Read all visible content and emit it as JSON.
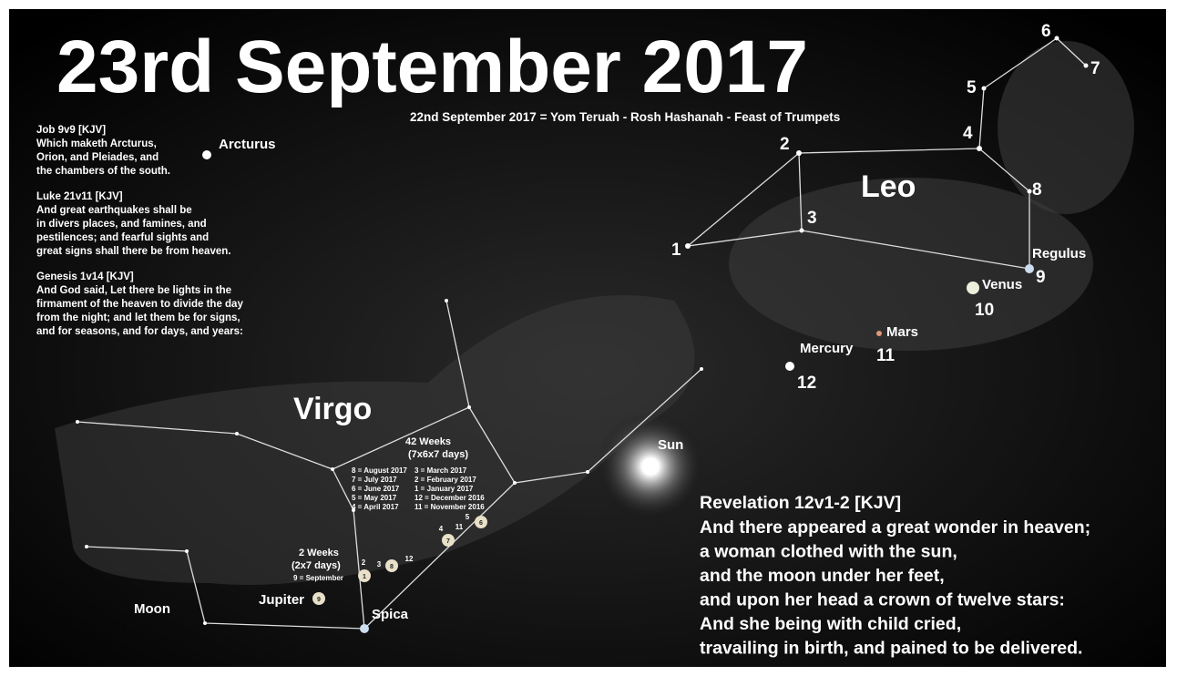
{
  "title": "23rd September 2017",
  "subtitle": "22nd September 2017 = Yom Teruah - Rosh Hashanah - Feast of Trumpets",
  "verses": [
    {
      "ref": "Job 9v9 [KJV]",
      "lines": [
        "Which maketh Arcturus,",
        "Orion, and Pleiades, and",
        "the chambers of the south."
      ]
    },
    {
      "ref": "Luke 21v11 [KJV]",
      "lines": [
        "And great earthquakes shall be",
        "in divers places, and famines, and",
        "pestilences; and fearful sights and",
        "great signs shall there be from heaven."
      ]
    },
    {
      "ref": "Genesis 1v14 [KJV]",
      "lines": [
        "And God said, Let there be lights in the",
        "firmament of the heaven to divide the day",
        "from the night; and let them be for signs,",
        "and for seasons, and for days, and years:"
      ]
    }
  ],
  "revelation": {
    "ref": "Revelation 12v1-2 [KJV]",
    "lines": [
      "And there appeared a great wonder in heaven;",
      "a woman clothed with the sun,",
      "and the moon under her feet,",
      "and upon her head a crown of twelve stars:",
      "And she being with child cried,",
      "travailing in birth, and pained to be delivered."
    ]
  },
  "constellations": {
    "leo": "Leo",
    "virgo": "Virgo"
  },
  "bodies": {
    "arcturus": "Arcturus",
    "regulus": "Regulus",
    "venus": "Venus",
    "mars": "Mars",
    "mercury": "Mercury",
    "sun": "Sun",
    "moon": "Moon",
    "jupiter": "Jupiter",
    "spica": "Spica"
  },
  "leo_numbers": [
    "1",
    "2",
    "3",
    "4",
    "5",
    "6",
    "7",
    "8",
    "9",
    "10",
    "11",
    "12"
  ],
  "weeks_42": {
    "title": "42 Weeks",
    "sub": "(7x6x7 days)",
    "left": [
      "8 = August 2017",
      "7 = July 2017",
      "6 = June 2017",
      "5 = May 2017",
      "4 = April 2017"
    ],
    "right": [
      "3 = March 2017",
      "2 = February 2017",
      "1 = January 2017",
      "12 = December 2016",
      "11 = November 2016"
    ]
  },
  "weeks_2": {
    "title": "2 Weeks",
    "sub": "(2x7 days)",
    "note": "9 = September"
  },
  "moon_markers": [
    "1",
    "2",
    "3",
    "8",
    "12",
    "9",
    "4",
    "11",
    "7",
    "5",
    "6"
  ]
}
